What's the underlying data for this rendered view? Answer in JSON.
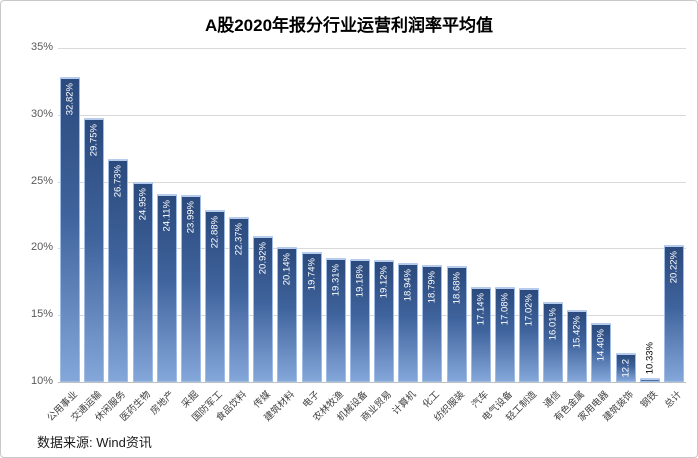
{
  "colors": {
    "bar_gradient_top": "#2B4A7D",
    "bar_gradient_mid": "#3F639C",
    "bar_gradient_bottom": "#84A7DA",
    "bar_border": "#9FBCE4",
    "grid_line": "#D9D9D9",
    "axis_line": "#BFBFBF",
    "inside_label_text": "#FFFFFF",
    "outside_label_text": "#000000",
    "tick_text": "#595959",
    "category_text": "#404040"
  },
  "chart_data": {
    "type": "bar",
    "title": "A股2020年报分行业运营利润率平均值",
    "source_note": "数据来源: Wind资讯",
    "xlabel": "",
    "ylabel": "",
    "ylim": [
      10,
      35
    ],
    "y_tick_labels": [
      "35%",
      "30%",
      "25%",
      "20%",
      "15%",
      "10%"
    ],
    "grid": true,
    "legend": false,
    "categories": [
      "公用事业",
      "交通运输",
      "休闲服务",
      "医药生物",
      "房地产",
      "采掘",
      "国防军工",
      "食品饮料",
      "传媒",
      "建筑材料",
      "电子",
      "农林牧渔",
      "机械设备",
      "商业贸易",
      "计算机",
      "化工",
      "纺织服装",
      "汽车",
      "电气设备",
      "轻工制造",
      "通信",
      "有色金属",
      "家用电器",
      "建筑装饰",
      "钢铁",
      "总计"
    ],
    "values": [
      32.82,
      29.75,
      26.73,
      24.95,
      24.11,
      23.99,
      22.88,
      22.37,
      20.92,
      20.14,
      19.74,
      19.31,
      19.18,
      19.12,
      18.94,
      18.79,
      18.68,
      17.14,
      17.08,
      17.02,
      16.01,
      15.42,
      14.4,
      12.2,
      10.33,
      20.22
    ],
    "data_labels": [
      "32.82%",
      "29.75%",
      "26.73%",
      "24.95%",
      "24.11%",
      "23.99%",
      "22.88%",
      "22.37%",
      "20.92%",
      "20.14%",
      "19.74%",
      "19.31%",
      "19.18%",
      "19.12%",
      "18.94%",
      "18.79%",
      "18.68%",
      "17.14%",
      "17.08%",
      "17.02%",
      "16.01%",
      "15.42%",
      "14.40%",
      "12.2",
      "10.33%",
      "20.22%"
    ],
    "data_label_positions": [
      "inside",
      "inside",
      "inside",
      "inside",
      "inside",
      "inside",
      "inside",
      "inside",
      "inside",
      "inside",
      "inside",
      "inside",
      "inside",
      "inside",
      "inside",
      "inside",
      "inside",
      "inside",
      "inside",
      "inside",
      "inside",
      "inside",
      "inside",
      "inside",
      "outside",
      "inside"
    ]
  }
}
